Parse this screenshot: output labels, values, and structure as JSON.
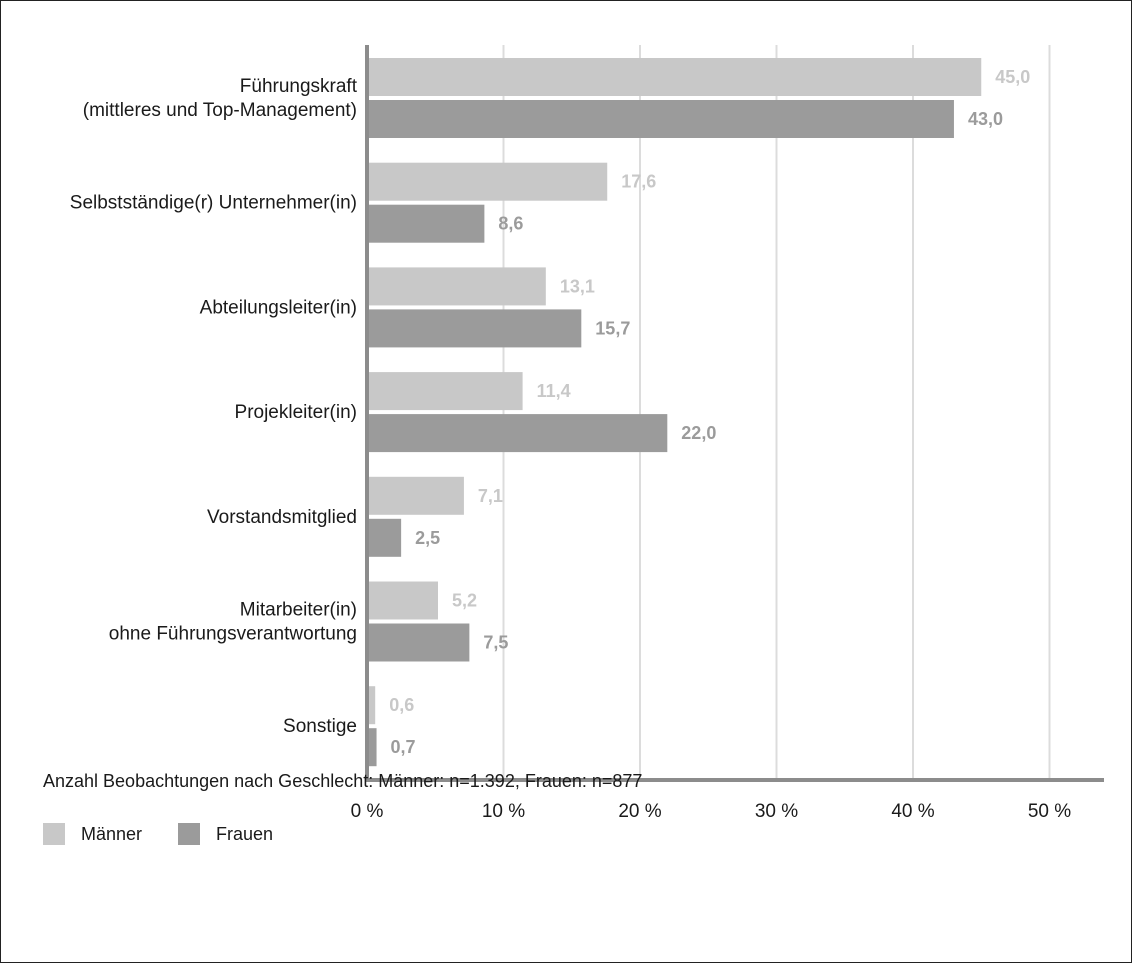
{
  "chart_data": {
    "type": "bar",
    "orientation": "horizontal",
    "categories": [
      [
        "Führungskraft",
        "(mittleres und Top-Management)"
      ],
      [
        "Selbstständige(r) Unternehmer(in)"
      ],
      [
        "Abteilungsleiter(in)"
      ],
      [
        "Projekleiter(in)"
      ],
      [
        "Vorstandsmitglied"
      ],
      [
        "Mitarbeiter(in)",
        "ohne Führungsverantwortung"
      ],
      [
        "Sonstige"
      ]
    ],
    "series": [
      {
        "name": "Männer",
        "color": "#c8c8c8",
        "values": [
          45.0,
          17.6,
          13.1,
          11.4,
          7.1,
          5.2,
          0.6
        ],
        "value_labels": [
          "45,0",
          "17,6",
          "13,1",
          "11,4",
          "7,1",
          "5,2",
          "0,6"
        ]
      },
      {
        "name": "Frauen",
        "color": "#9b9b9b",
        "values": [
          43.0,
          8.6,
          15.7,
          22.0,
          2.5,
          7.5,
          0.7
        ],
        "value_labels": [
          "43,0",
          "8,6",
          "15,7",
          "22,0",
          "2,5",
          "7,5",
          "0,7"
        ]
      }
    ],
    "xlim": [
      0,
      50
    ],
    "xticks": [
      0,
      10,
      20,
      30,
      40,
      50
    ],
    "xtick_labels": [
      "0 %",
      "10 %",
      "20 %",
      "30 %",
      "40 %",
      "50 %"
    ],
    "grid": true,
    "legend_position": "bottom-left",
    "axis_color": "#8c8c8c",
    "grid_color": "#dcdcdc"
  },
  "note": "Anzahl Beobachtungen nach Geschlecht: Männer: n=1.392, Frauen: n=877",
  "legend": [
    {
      "label": "Männer",
      "color": "#c8c8c8"
    },
    {
      "label": "Frauen",
      "color": "#9b9b9b"
    }
  ]
}
